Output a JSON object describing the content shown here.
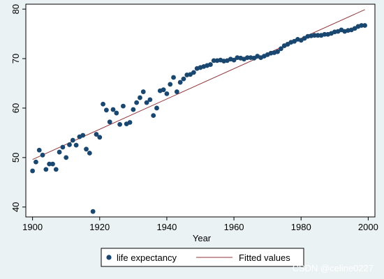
{
  "chart_data": {
    "type": "scatter",
    "xlabel": "Year",
    "ylabel": "",
    "xlim": [
      1898,
      2002
    ],
    "ylim": [
      38,
      81
    ],
    "xticks": [
      1900,
      1920,
      1940,
      1960,
      1980,
      2000
    ],
    "yticks": [
      40,
      50,
      60,
      70,
      80
    ],
    "grid": false,
    "legend_position": "bottom",
    "series": [
      {
        "name": "life expectancy",
        "kind": "scatter",
        "color": "#1a476f",
        "points": [
          [
            1900,
            47.3
          ],
          [
            1901,
            49.1
          ],
          [
            1902,
            51.5
          ],
          [
            1903,
            50.5
          ],
          [
            1904,
            47.6
          ],
          [
            1905,
            48.7
          ],
          [
            1906,
            48.7
          ],
          [
            1907,
            47.6
          ],
          [
            1908,
            51.1
          ],
          [
            1909,
            52.1
          ],
          [
            1910,
            50.0
          ],
          [
            1911,
            52.6
          ],
          [
            1912,
            53.5
          ],
          [
            1913,
            52.5
          ],
          [
            1914,
            54.2
          ],
          [
            1915,
            54.5
          ],
          [
            1916,
            51.7
          ],
          [
            1917,
            50.9
          ],
          [
            1918,
            39.1
          ],
          [
            1919,
            54.7
          ],
          [
            1920,
            54.1
          ],
          [
            1921,
            60.8
          ],
          [
            1922,
            59.6
          ],
          [
            1923,
            57.2
          ],
          [
            1924,
            59.7
          ],
          [
            1925,
            59.0
          ],
          [
            1926,
            56.7
          ],
          [
            1927,
            60.4
          ],
          [
            1928,
            56.8
          ],
          [
            1929,
            57.1
          ],
          [
            1930,
            59.7
          ],
          [
            1931,
            61.1
          ],
          [
            1932,
            62.1
          ],
          [
            1933,
            63.3
          ],
          [
            1934,
            61.1
          ],
          [
            1935,
            61.7
          ],
          [
            1936,
            58.5
          ],
          [
            1937,
            60.0
          ],
          [
            1938,
            63.5
          ],
          [
            1939,
            63.7
          ],
          [
            1940,
            62.9
          ],
          [
            1941,
            64.8
          ],
          [
            1942,
            66.2
          ],
          [
            1943,
            63.3
          ],
          [
            1944,
            65.2
          ],
          [
            1945,
            65.9
          ],
          [
            1946,
            66.7
          ],
          [
            1947,
            66.8
          ],
          [
            1948,
            67.2
          ],
          [
            1949,
            68.0
          ],
          [
            1950,
            68.2
          ],
          [
            1951,
            68.4
          ],
          [
            1952,
            68.6
          ],
          [
            1953,
            68.8
          ],
          [
            1954,
            69.6
          ],
          [
            1955,
            69.6
          ],
          [
            1956,
            69.7
          ],
          [
            1957,
            69.5
          ],
          [
            1958,
            69.6
          ],
          [
            1959,
            69.9
          ],
          [
            1960,
            69.7
          ],
          [
            1961,
            70.2
          ],
          [
            1962,
            70.1
          ],
          [
            1963,
            69.9
          ],
          [
            1964,
            70.2
          ],
          [
            1965,
            70.2
          ],
          [
            1966,
            70.1
          ],
          [
            1967,
            70.5
          ],
          [
            1968,
            70.2
          ],
          [
            1969,
            70.5
          ],
          [
            1970,
            70.8
          ],
          [
            1971,
            71.1
          ],
          [
            1972,
            71.2
          ],
          [
            1973,
            71.4
          ],
          [
            1974,
            72.0
          ],
          [
            1975,
            72.6
          ],
          [
            1976,
            72.9
          ],
          [
            1977,
            73.3
          ],
          [
            1978,
            73.5
          ],
          [
            1979,
            73.9
          ],
          [
            1980,
            73.7
          ],
          [
            1981,
            74.1
          ],
          [
            1982,
            74.5
          ],
          [
            1983,
            74.6
          ],
          [
            1984,
            74.7
          ],
          [
            1985,
            74.7
          ],
          [
            1986,
            74.7
          ],
          [
            1987,
            74.9
          ],
          [
            1988,
            74.9
          ],
          [
            1989,
            75.1
          ],
          [
            1990,
            75.4
          ],
          [
            1991,
            75.5
          ],
          [
            1992,
            75.8
          ],
          [
            1993,
            75.5
          ],
          [
            1994,
            75.7
          ],
          [
            1995,
            75.8
          ],
          [
            1996,
            76.1
          ],
          [
            1997,
            76.5
          ],
          [
            1998,
            76.7
          ],
          [
            1999,
            76.7
          ]
        ]
      },
      {
        "name": "Fitted values",
        "kind": "line",
        "color": "#90353b",
        "points": [
          [
            1900,
            49.6
          ],
          [
            1999,
            79.9
          ]
        ]
      }
    ]
  },
  "watermark": "CSDN @celine0227"
}
